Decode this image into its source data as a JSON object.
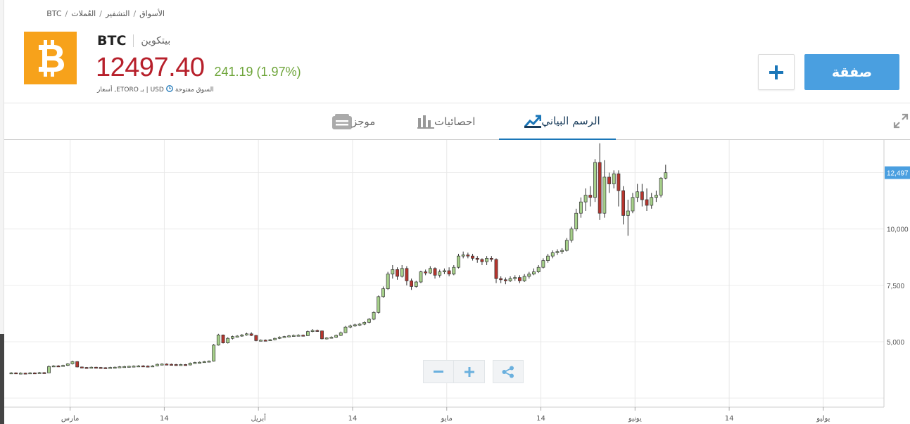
{
  "breadcrumb": {
    "items": [
      "الأسواق",
      "التشفير",
      "العُملات",
      "BTC"
    ]
  },
  "instrument": {
    "symbol": "BTC",
    "name": "بيتكوين",
    "price": "12497.40",
    "change": "241.19 (1.97%)",
    "status": "السوق مفتوحة",
    "source": "USD | بـ ETORO, أسعار",
    "logo_color": "#f7a21b",
    "price_color": "#b7202b",
    "change_color": "#6ea53a"
  },
  "actions": {
    "trade_label": "صفقة",
    "add_icon": "plus-icon"
  },
  "tabs": [
    {
      "label": "الرسم البياني",
      "icon": "chart-trend-icon",
      "active": true
    },
    {
      "label": "احصائيات",
      "icon": "bar-stats-icon",
      "active": false
    },
    {
      "label": "موجز",
      "icon": "feed-icon",
      "active": false
    }
  ],
  "chart_data": {
    "type": "candlestick",
    "current_price_label": "12,497",
    "y_ticks": [
      {
        "value": 5000,
        "label": "5,000"
      },
      {
        "value": 7500,
        "label": "7,500"
      },
      {
        "value": 10000,
        "label": "10,000"
      }
    ],
    "x_ticks": [
      "14",
      "مارس",
      "14",
      "أبريل",
      "14",
      "مايو",
      "14",
      "يونيو",
      "14",
      "يوليو",
      "14"
    ],
    "ylim": [
      2100,
      13950
    ],
    "x_range_days": [
      0,
      180
    ],
    "x_tick_days": [
      -6,
      14,
      34,
      54,
      74,
      94,
      114,
      134,
      154,
      174,
      194
    ],
    "grid": true,
    "candles": [
      [
        3600,
        3620,
        3650,
        3580
      ],
      [
        3620,
        3600,
        3640,
        3570
      ],
      [
        3600,
        3610,
        3640,
        3580
      ],
      [
        3610,
        3590,
        3630,
        3570
      ],
      [
        3590,
        3620,
        3650,
        3570
      ],
      [
        3620,
        3610,
        3640,
        3580
      ],
      [
        3610,
        3630,
        3660,
        3590
      ],
      [
        3630,
        3620,
        3650,
        3600
      ],
      [
        3620,
        3900,
        3950,
        3610
      ],
      [
        3900,
        3930,
        3960,
        3880
      ],
      [
        3930,
        3920,
        3960,
        3890
      ],
      [
        3920,
        3950,
        3980,
        3900
      ],
      [
        3950,
        4020,
        4050,
        3920
      ],
      [
        4020,
        4120,
        4160,
        3990
      ],
      [
        4120,
        3880,
        4140,
        3860
      ],
      [
        3880,
        3860,
        3900,
        3840
      ],
      [
        3860,
        3850,
        3880,
        3830
      ],
      [
        3850,
        3870,
        3900,
        3830
      ],
      [
        3870,
        3860,
        3890,
        3840
      ],
      [
        3860,
        3850,
        3880,
        3830
      ],
      [
        3850,
        3840,
        3870,
        3820
      ],
      [
        3840,
        3860,
        3890,
        3820
      ],
      [
        3860,
        3870,
        3900,
        3840
      ],
      [
        3870,
        3890,
        3920,
        3850
      ],
      [
        3890,
        3900,
        3930,
        3870
      ],
      [
        3900,
        3910,
        3940,
        3880
      ],
      [
        3910,
        3920,
        3950,
        3890
      ],
      [
        3920,
        3930,
        3960,
        3900
      ],
      [
        3930,
        3920,
        3960,
        3900
      ],
      [
        3920,
        3910,
        3950,
        3890
      ],
      [
        3910,
        3930,
        3960,
        3890
      ],
      [
        3930,
        4000,
        4030,
        3910
      ],
      [
        4000,
        4010,
        4040,
        3980
      ],
      [
        4010,
        4000,
        4040,
        3980
      ],
      [
        4000,
        3990,
        4030,
        3970
      ],
      [
        3990,
        3980,
        4020,
        3960
      ],
      [
        3980,
        3990,
        4020,
        3960
      ],
      [
        3990,
        3970,
        4010,
        3950
      ],
      [
        3970,
        4050,
        4080,
        3950
      ],
      [
        4050,
        4080,
        4110,
        4030
      ],
      [
        4080,
        4090,
        4120,
        4060
      ],
      [
        4090,
        4120,
        4150,
        4070
      ],
      [
        4120,
        4140,
        4170,
        4100
      ],
      [
        4140,
        4850,
        4900,
        4120
      ],
      [
        4850,
        5300,
        5350,
        4830
      ],
      [
        5300,
        4950,
        5320,
        4920
      ],
      [
        4950,
        5150,
        5200,
        4920
      ],
      [
        5150,
        5230,
        5270,
        5100
      ],
      [
        5230,
        5250,
        5290,
        5200
      ],
      [
        5250,
        5300,
        5340,
        5220
      ],
      [
        5300,
        5350,
        5400,
        5270
      ],
      [
        5350,
        5280,
        5420,
        5250
      ],
      [
        5280,
        5050,
        5300,
        5020
      ],
      [
        5050,
        5070,
        5100,
        5020
      ],
      [
        5070,
        5060,
        5100,
        5030
      ],
      [
        5060,
        5090,
        5120,
        5040
      ],
      [
        5090,
        5150,
        5180,
        5060
      ],
      [
        5150,
        5200,
        5240,
        5120
      ],
      [
        5200,
        5230,
        5260,
        5170
      ],
      [
        5230,
        5260,
        5300,
        5200
      ],
      [
        5260,
        5280,
        5320,
        5230
      ],
      [
        5280,
        5290,
        5330,
        5250
      ],
      [
        5290,
        5270,
        5320,
        5240
      ],
      [
        5270,
        5450,
        5500,
        5250
      ],
      [
        5450,
        5500,
        5560,
        5420
      ],
      [
        5500,
        5480,
        5540,
        5440
      ],
      [
        5480,
        5130,
        5500,
        5100
      ],
      [
        5130,
        5170,
        5200,
        5100
      ],
      [
        5170,
        5200,
        5240,
        5140
      ],
      [
        5200,
        5280,
        5320,
        5170
      ],
      [
        5280,
        5400,
        5450,
        5250
      ],
      [
        5400,
        5650,
        5700,
        5380
      ],
      [
        5650,
        5700,
        5760,
        5600
      ],
      [
        5700,
        5750,
        5800,
        5660
      ],
      [
        5750,
        5780,
        5830,
        5700
      ],
      [
        5780,
        5860,
        5900,
        5740
      ],
      [
        5860,
        6000,
        6050,
        5820
      ],
      [
        6000,
        6300,
        6350,
        5960
      ],
      [
        6300,
        7000,
        7050,
        6250
      ],
      [
        7000,
        7350,
        7450,
        6950
      ],
      [
        7350,
        8000,
        8100,
        7300
      ],
      [
        8000,
        8200,
        8400,
        7800
      ],
      [
        8200,
        7900,
        8300,
        7750
      ],
      [
        7900,
        8250,
        8400,
        7850
      ],
      [
        8250,
        7700,
        8350,
        7500
      ],
      [
        7700,
        7450,
        7800,
        7300
      ],
      [
        7450,
        7650,
        7700,
        7400
      ],
      [
        7650,
        8100,
        8150,
        7600
      ],
      [
        8100,
        8050,
        8200,
        7950
      ],
      [
        8050,
        8250,
        8350,
        8000
      ],
      [
        8250,
        7950,
        8300,
        7800
      ],
      [
        7950,
        8100,
        8200,
        7850
      ],
      [
        8100,
        8150,
        8250,
        8000
      ],
      [
        8150,
        8000,
        8300,
        7900
      ],
      [
        8000,
        8300,
        8400,
        7950
      ],
      [
        8300,
        8800,
        8900,
        8250
      ],
      [
        8800,
        8850,
        9000,
        8700
      ],
      [
        8850,
        8800,
        8950,
        8700
      ],
      [
        8800,
        8700,
        8900,
        8600
      ],
      [
        8700,
        8650,
        8800,
        8500
      ],
      [
        8650,
        8550,
        8700,
        8400
      ],
      [
        8550,
        8700,
        8800,
        8400
      ],
      [
        8700,
        8650,
        8800,
        8550
      ],
      [
        8650,
        7800,
        8700,
        7600
      ],
      [
        7800,
        7750,
        7900,
        7600
      ],
      [
        7750,
        7700,
        7850,
        7550
      ],
      [
        7700,
        7800,
        7900,
        7650
      ],
      [
        7800,
        7850,
        7950,
        7700
      ],
      [
        7850,
        7700,
        7950,
        7600
      ],
      [
        7700,
        7900,
        8000,
        7650
      ],
      [
        7900,
        8000,
        8100,
        7800
      ],
      [
        8000,
        8100,
        8250,
        7950
      ],
      [
        8100,
        8300,
        8400,
        8050
      ],
      [
        8300,
        8600,
        8700,
        8250
      ],
      [
        8600,
        8800,
        8900,
        8500
      ],
      [
        8800,
        8950,
        9050,
        8700
      ],
      [
        8950,
        9000,
        9100,
        8850
      ],
      [
        9000,
        9050,
        9150,
        8900
      ],
      [
        9050,
        9500,
        9600,
        9000
      ],
      [
        9500,
        10000,
        10100,
        9400
      ],
      [
        10000,
        10700,
        10900,
        9900
      ],
      [
        10700,
        11200,
        11400,
        10500
      ],
      [
        11200,
        11500,
        11800,
        10800
      ],
      [
        11500,
        11400,
        11900,
        11000
      ],
      [
        11400,
        12950,
        13100,
        11200
      ],
      [
        12950,
        10700,
        13800,
        10400
      ],
      [
        10700,
        12300,
        13050,
        10500
      ],
      [
        12300,
        12000,
        12500,
        11600
      ],
      [
        12000,
        12450,
        12600,
        11800
      ],
      [
        12450,
        11700,
        12600,
        11000
      ],
      [
        11700,
        10600,
        11900,
        10200
      ],
      [
        10600,
        10800,
        11300,
        9700
      ],
      [
        10800,
        11400,
        11600,
        10700
      ],
      [
        11400,
        11650,
        12000,
        11200
      ],
      [
        11650,
        11300,
        12000,
        11000
      ],
      [
        11300,
        11050,
        11800,
        10800
      ],
      [
        11050,
        11400,
        11600,
        10900
      ],
      [
        11400,
        11500,
        11700,
        11200
      ],
      [
        11500,
        12256,
        12300,
        11400
      ],
      [
        12256,
        12497,
        12850,
        12200
      ]
    ]
  },
  "controls": {
    "zoom_out_icon": "minus-icon",
    "zoom_in_icon": "plus-icon",
    "share_icon": "share-icon"
  }
}
